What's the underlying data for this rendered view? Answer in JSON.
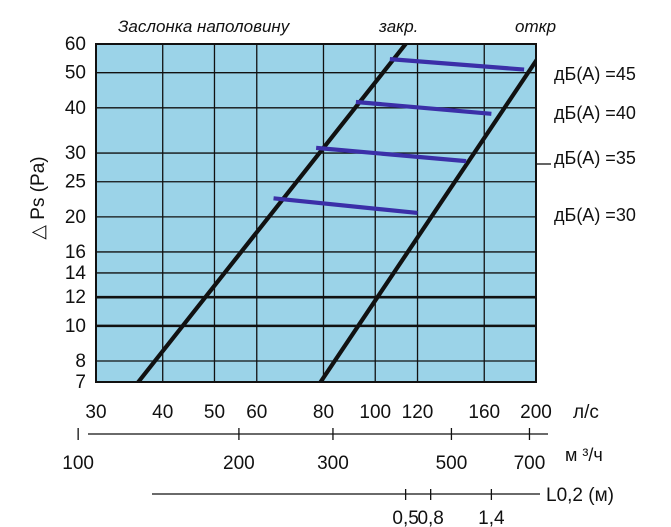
{
  "chart_data": {
    "type": "line",
    "top_labels": {
      "half_closed": "Заслонка наполовину",
      "closed": "закр.",
      "open": "откр"
    },
    "ylabel": "△ Ps (Pa)",
    "y_ticks": [
      {
        "value": 60,
        "label": "60"
      },
      {
        "value": 50,
        "label": "50"
      },
      {
        "value": 40,
        "label": "40"
      },
      {
        "value": 30,
        "label": "30"
      },
      {
        "value": 25,
        "label": "25"
      },
      {
        "value": 20,
        "label": "20"
      },
      {
        "value": 16,
        "label": "16"
      },
      {
        "value": 14,
        "label": "14"
      },
      {
        "value": 12,
        "label": "12"
      },
      {
        "value": 10,
        "label": "10"
      },
      {
        "value": 8,
        "label": "8"
      },
      {
        "value": 7,
        "label": "7"
      }
    ],
    "ylim": [
      7,
      60
    ],
    "y_scale": "log",
    "xlim": [
      30,
      200
    ],
    "x_scale": "log",
    "x_axes": [
      {
        "unit": "л/с",
        "ticks": [
          {
            "value": 30,
            "label": "30"
          },
          {
            "value": 40,
            "label": "40"
          },
          {
            "value": 50,
            "label": "50"
          },
          {
            "value": 60,
            "label": "60"
          },
          {
            "value": 80,
            "label": "80"
          },
          {
            "value": 100,
            "label": "100"
          },
          {
            "value": 120,
            "label": "120"
          },
          {
            "value": 160,
            "label": "160"
          },
          {
            "value": 200,
            "label": "200"
          }
        ]
      },
      {
        "unit": "м ³/ч",
        "ticks": [
          {
            "value": 100,
            "label": "100"
          },
          {
            "value": 200,
            "label": "200"
          },
          {
            "value": 300,
            "label": "300"
          },
          {
            "value": 500,
            "label": "500"
          },
          {
            "value": 700,
            "label": "700"
          }
        ]
      },
      {
        "unit": "L0,2 (м)",
        "ticks": [
          {
            "value": 0.5,
            "label": "0,5",
            "at_ls": 114
          },
          {
            "value": 0.8,
            "label": "0,8",
            "at_ls": 127
          },
          {
            "value": 1.4,
            "label": "1,4",
            "at_ls": 165
          }
        ]
      }
    ],
    "series": [
      {
        "name": "закр.",
        "points": [
          [
            36,
            7
          ],
          [
            114,
            60
          ]
        ]
      },
      {
        "name": "откр",
        "points": [
          [
            79,
            7
          ],
          [
            210,
            60
          ]
        ]
      }
    ],
    "noise_lines": [
      {
        "label": "дБ(А) =45",
        "points": [
          [
            106.5,
            54.5
          ],
          [
            190,
            51
          ]
        ]
      },
      {
        "label": "дБ(А) =40",
        "points": [
          [
            92,
            41.5
          ],
          [
            165,
            38.5
          ]
        ]
      },
      {
        "label": "дБ(А) =35",
        "points": [
          [
            77.5,
            31
          ],
          [
            148,
            28.5
          ]
        ]
      },
      {
        "label": "дБ(А) =30",
        "points": [
          [
            64.5,
            22.5
          ],
          [
            120,
            20.5
          ]
        ]
      }
    ],
    "colors": {
      "background": "#9bd3e8",
      "grid": "#111111",
      "lines": "#111111",
      "noise": "#3b2fa8"
    },
    "grid": true
  }
}
